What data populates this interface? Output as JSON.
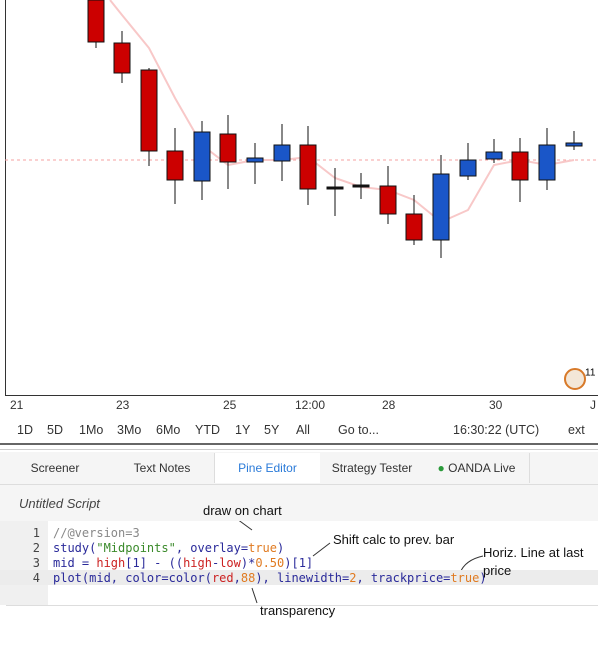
{
  "chart": {
    "time_axis": [
      "21",
      "23",
      "25",
      "12:00",
      "28",
      "30",
      "J"
    ],
    "badge": "11"
  },
  "toolbar": {
    "ranges": [
      "1D",
      "5D",
      "1Mo",
      "3Mo",
      "6Mo",
      "YTD",
      "1Y",
      "5Y",
      "All"
    ],
    "goto": "Go to...",
    "clock": "16:30:22 (UTC)",
    "ext": "ext"
  },
  "tabs": [
    "Screener",
    "Text Notes",
    "Pine Editor",
    "Strategy Tester",
    "OANDA Live"
  ],
  "editor": {
    "title": "Untitled Script",
    "line_numbers": [
      "1",
      "2",
      "3",
      "4"
    ],
    "lines": [
      [
        "//@version=3"
      ],
      [
        "study(",
        "\"Midpoints\"",
        ", overlay=",
        "true",
        ")"
      ],
      [
        "mid = ",
        "high",
        "[1] - ((",
        "high",
        "-",
        "low",
        ")*",
        "0.50",
        ")[1]"
      ],
      [
        "plot(mid, color=color(",
        "red",
        ",",
        "88",
        "), linewidth=",
        "2",
        ", trackprice=",
        "true",
        ")"
      ]
    ]
  },
  "annotations": [
    "draw on chart",
    "Shift calc to prev. bar",
    "Horiz. Line at last",
    "price",
    "transparency"
  ]
}
